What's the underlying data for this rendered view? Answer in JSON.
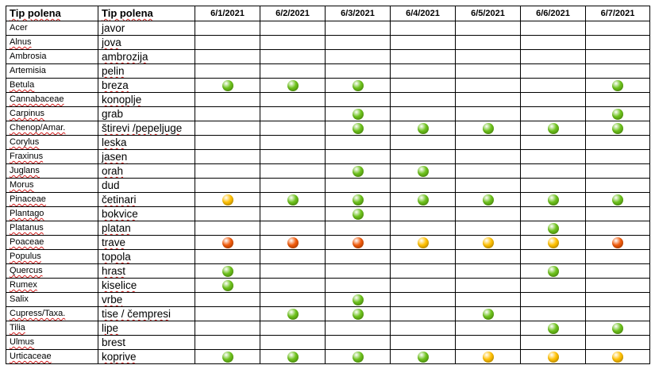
{
  "table": {
    "header": {
      "latin": "Tip polena",
      "local": "Tip polena",
      "dates": [
        "6/1/2021",
        "6/2/2021",
        "6/3/2021",
        "6/4/2021",
        "6/5/2021",
        "6/6/2021",
        "6/7/2021"
      ]
    },
    "colors": {
      "low": "#6cc11a",
      "moderate": "#ffc000",
      "high": "#f15a0a"
    },
    "rows": [
      {
        "latin": "Acer",
        "local": "javor",
        "levels": [
          null,
          null,
          null,
          null,
          null,
          null,
          null
        ]
      },
      {
        "latin": "Alnus",
        "local": "jova",
        "levels": [
          null,
          null,
          null,
          null,
          null,
          null,
          null
        ]
      },
      {
        "latin": "Ambrosia",
        "local": "ambrozija",
        "levels": [
          null,
          null,
          null,
          null,
          null,
          null,
          null
        ]
      },
      {
        "latin": "Artemisia",
        "local": "pelin",
        "levels": [
          null,
          null,
          null,
          null,
          null,
          null,
          null
        ]
      },
      {
        "latin": "Betula",
        "local": "breza",
        "levels": [
          "low",
          "low",
          "low",
          null,
          null,
          null,
          "low"
        ]
      },
      {
        "latin": "Cannabaceae",
        "local": "konoplje",
        "levels": [
          null,
          null,
          null,
          null,
          null,
          null,
          null
        ]
      },
      {
        "latin": "Carpinus",
        "local": "grab",
        "levels": [
          null,
          null,
          "low",
          null,
          null,
          null,
          "low"
        ]
      },
      {
        "latin": "Chenop/Amar.",
        "local": "štirevi /pepeljuge",
        "levels": [
          null,
          null,
          "low",
          "low",
          "low",
          "low",
          "low"
        ]
      },
      {
        "latin": "Corylus",
        "local": "leska",
        "levels": [
          null,
          null,
          null,
          null,
          null,
          null,
          null
        ]
      },
      {
        "latin": "Fraxinus",
        "local": "jasen",
        "levels": [
          null,
          null,
          null,
          null,
          null,
          null,
          null
        ]
      },
      {
        "latin": "Juglans",
        "local": "orah",
        "levels": [
          null,
          null,
          "low",
          "low",
          null,
          null,
          null
        ]
      },
      {
        "latin": "Morus",
        "local": "dud",
        "levels": [
          null,
          null,
          null,
          null,
          null,
          null,
          null
        ]
      },
      {
        "latin": "Pinaceae",
        "local": "četinari",
        "levels": [
          "moderate",
          "low",
          "low",
          "low",
          "low",
          "low",
          "low"
        ]
      },
      {
        "latin": "Plantago",
        "local": "bokvice",
        "levels": [
          null,
          null,
          "low",
          null,
          null,
          null,
          null
        ]
      },
      {
        "latin": "Platanus",
        "local": "platan",
        "levels": [
          null,
          null,
          null,
          null,
          null,
          "low",
          null
        ]
      },
      {
        "latin": "Poaceae",
        "local": "trave",
        "levels": [
          "high",
          "high",
          "high",
          "moderate",
          "moderate",
          "moderate",
          "high"
        ]
      },
      {
        "latin": "Populus",
        "local": "topola",
        "levels": [
          null,
          null,
          null,
          null,
          null,
          null,
          null
        ]
      },
      {
        "latin": "Quercus",
        "local": "hrast",
        "levels": [
          "low",
          null,
          null,
          null,
          null,
          "low",
          null
        ]
      },
      {
        "latin": "Rumex",
        "local": "kiselice",
        "levels": [
          "low",
          null,
          null,
          null,
          null,
          null,
          null
        ]
      },
      {
        "latin": "Salix",
        "local": "vrbe",
        "levels": [
          null,
          null,
          "low",
          null,
          null,
          null,
          null
        ]
      },
      {
        "latin": "Cupress/Taxa.",
        "local": "tise / čempresi",
        "levels": [
          null,
          "low",
          "low",
          null,
          "low",
          null,
          null
        ]
      },
      {
        "latin": "Tilia",
        "local": "lipe",
        "levels": [
          null,
          null,
          null,
          null,
          null,
          "low",
          "low"
        ]
      },
      {
        "latin": "Ulmus",
        "local": "brest",
        "levels": [
          null,
          null,
          null,
          null,
          null,
          null,
          null
        ]
      },
      {
        "latin": "Urticaceae",
        "local": "koprive",
        "levels": [
          "low",
          "low",
          "low",
          "low",
          "moderate",
          "moderate",
          "moderate"
        ]
      }
    ]
  }
}
